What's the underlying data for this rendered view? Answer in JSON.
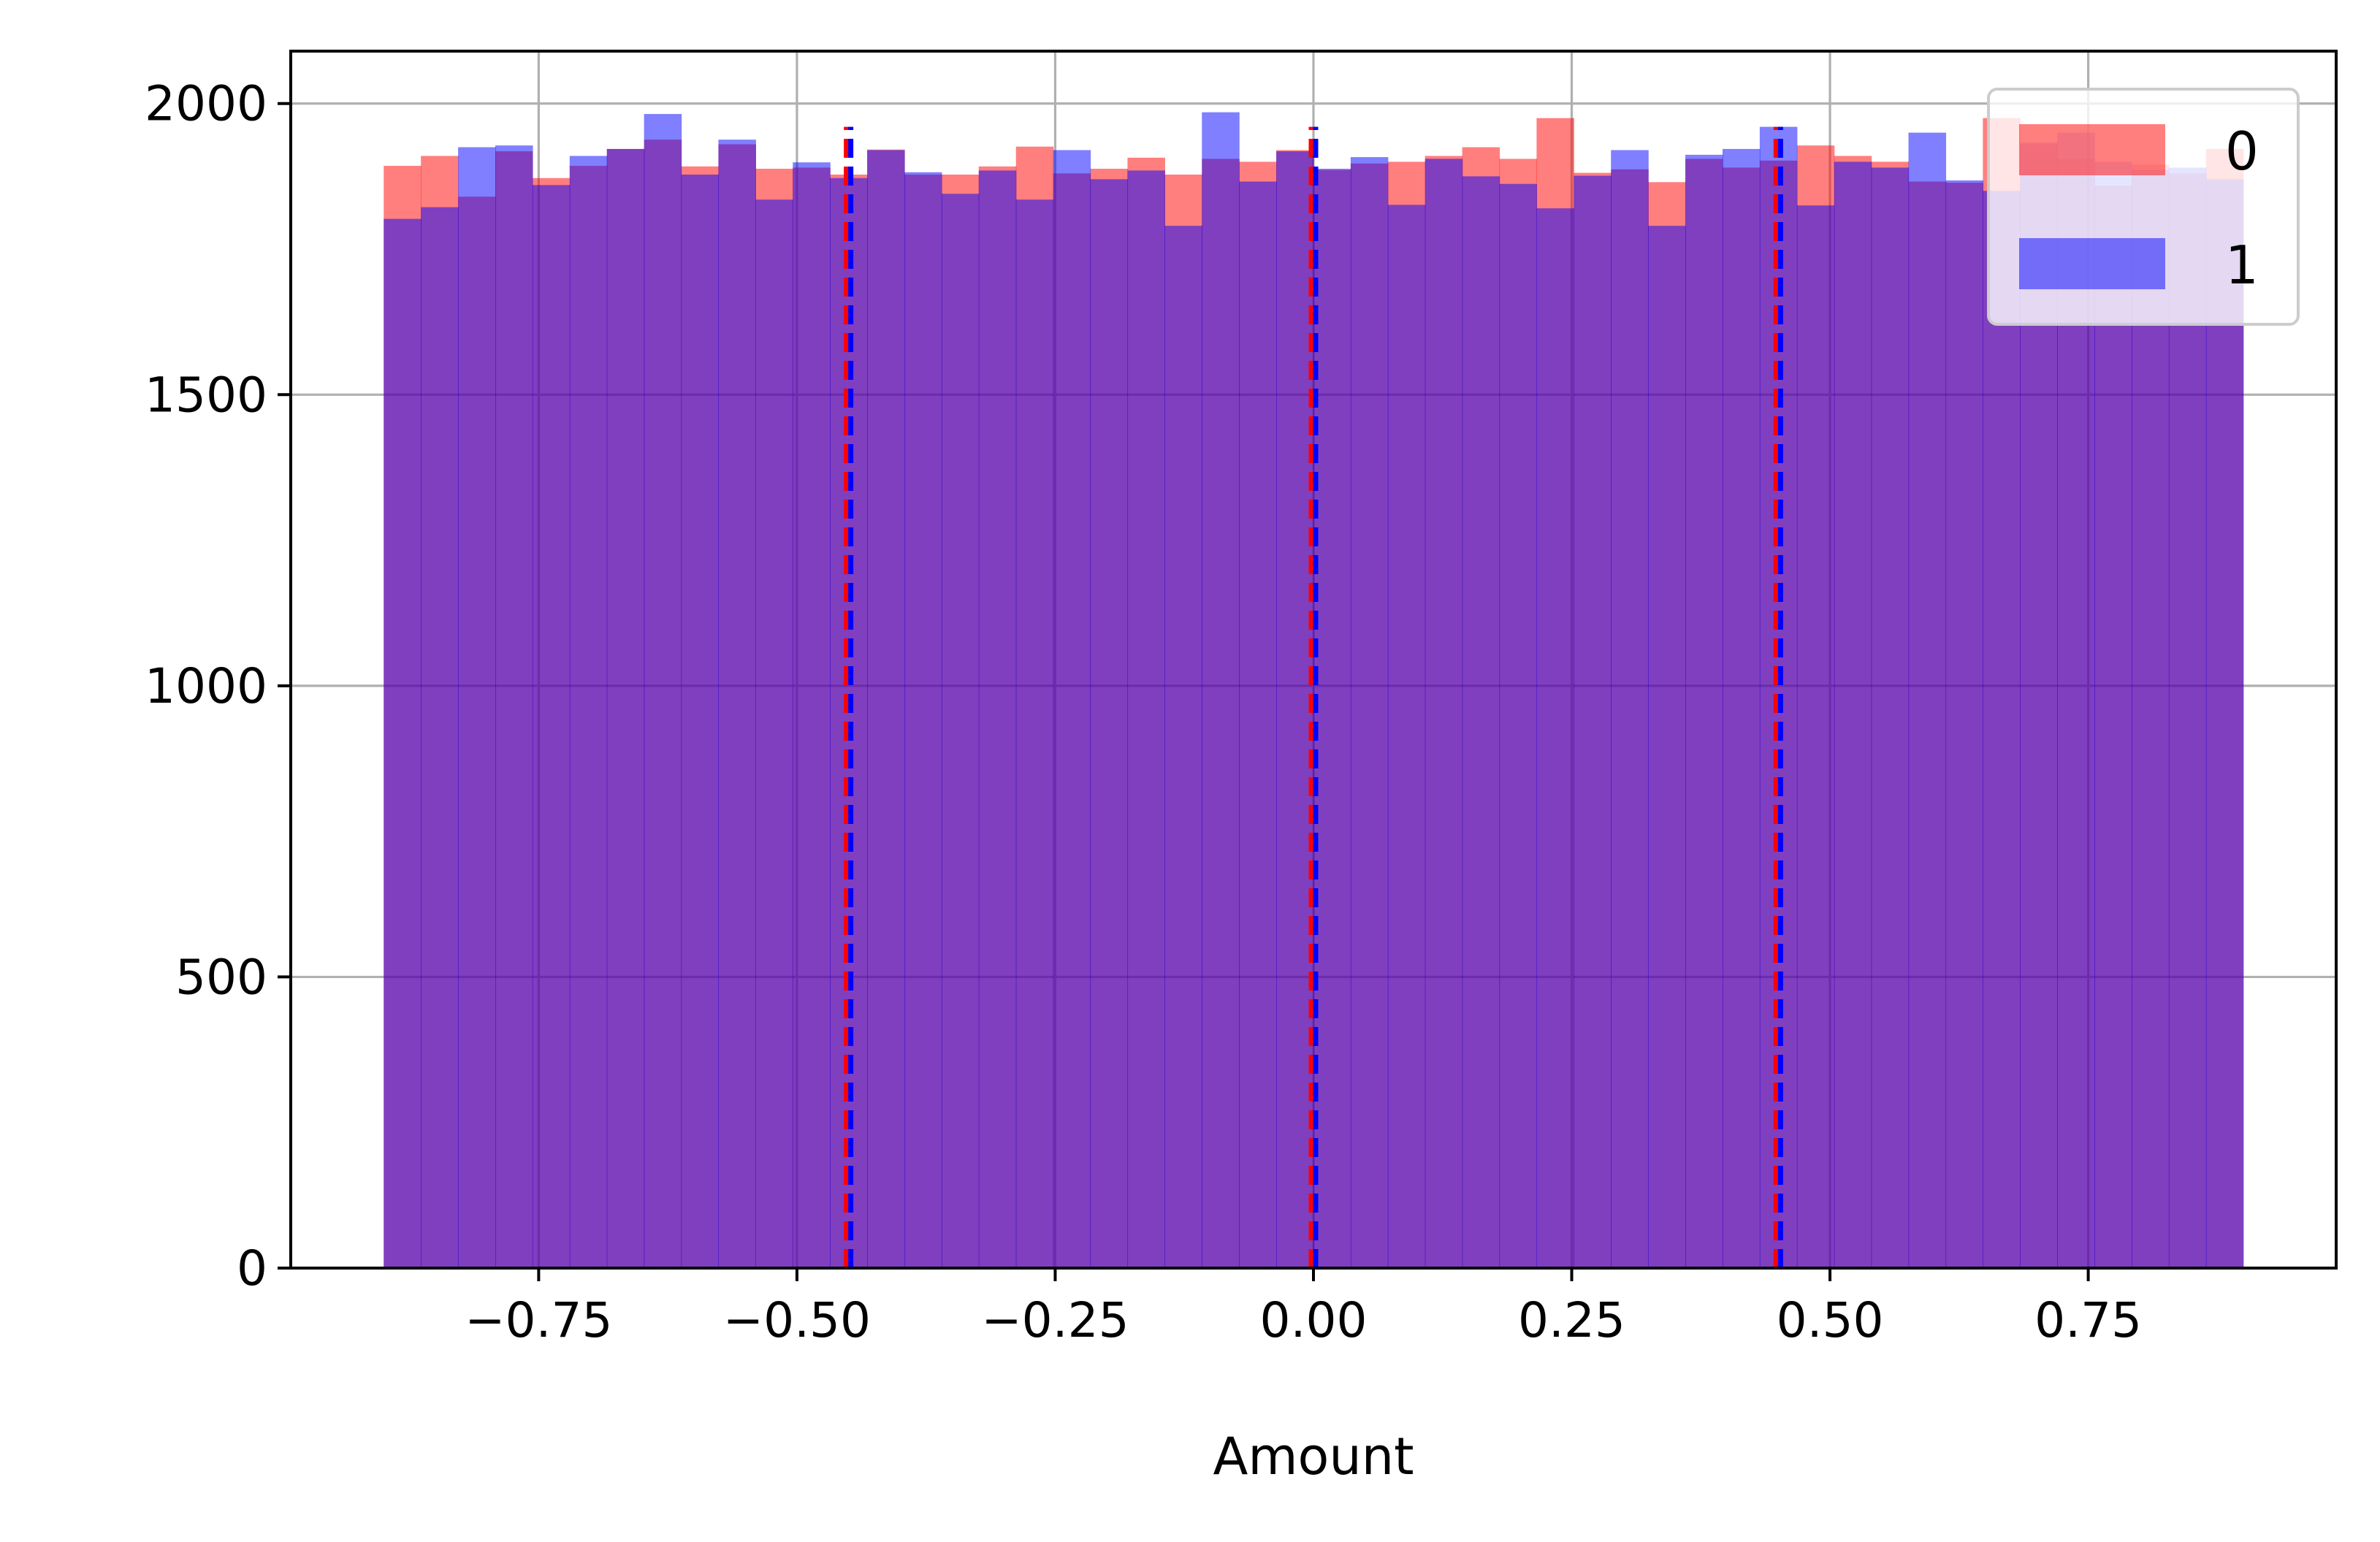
{
  "chart_data": {
    "type": "bar",
    "subtype": "overlapping-histogram",
    "title": "",
    "xlabel": "Amount",
    "ylabel": "",
    "xlim": [
      -0.99,
      0.99
    ],
    "ylim": [
      0,
      2090
    ],
    "grid": true,
    "legend_placement": "top-right",
    "x_ticks": [
      -0.75,
      -0.5,
      -0.25,
      0.0,
      0.25,
      0.5,
      0.75
    ],
    "x_tick_labels": [
      "−0.75",
      "−0.50",
      "−0.25",
      "0.00",
      "0.25",
      "0.50",
      "0.75"
    ],
    "y_ticks": [
      0,
      500,
      1000,
      1500,
      2000
    ],
    "y_tick_labels": [
      "0",
      "500",
      "1000",
      "1500",
      "2000"
    ],
    "bin_start": -0.9,
    "bin_width": 0.036,
    "series": [
      {
        "name": "0",
        "color": "#ff0000",
        "alpha": 0.5,
        "values": [
          1893,
          1910,
          1840,
          1918,
          1872,
          1893,
          1922,
          1938,
          1892,
          1930,
          1888,
          1890,
          1878,
          1921,
          1878,
          1878,
          1892,
          1926,
          1880,
          1888,
          1907,
          1878,
          1905,
          1900,
          1920,
          1886,
          1897,
          1900,
          1910,
          1925,
          1905,
          1975,
          1881,
          1887,
          1865,
          1905,
          1890,
          1902,
          1928,
          1910,
          1900,
          1866,
          1864,
          1975,
          1930,
          1905,
          1859,
          1895,
          1880,
          1922
        ]
      },
      {
        "name": "1",
        "color": "#0000ff",
        "alpha": 0.5,
        "values": [
          1802,
          1822,
          1925,
          1928,
          1860,
          1910,
          1922,
          1982,
          1878,
          1938,
          1835,
          1899,
          1872,
          1920,
          1882,
          1845,
          1885,
          1835,
          1920,
          1870,
          1885,
          1790,
          1985,
          1866,
          1918,
          1888,
          1908,
          1826,
          1905,
          1875,
          1862,
          1820,
          1876,
          1920,
          1790,
          1912,
          1922,
          1960,
          1825,
          1900,
          1890,
          1950,
          1868,
          1850,
          1933,
          1950,
          1900,
          1886,
          1890,
          1870
        ]
      }
    ],
    "vlines": [
      {
        "series": "0",
        "color": "#ff0000",
        "x": [
          -0.45,
          0.0,
          0.45
        ],
        "ymax": 1960
      },
      {
        "series": "1",
        "color": "#0000ff",
        "x": [
          -0.45,
          0.0,
          0.45
        ],
        "ymax": 1960
      }
    ]
  }
}
